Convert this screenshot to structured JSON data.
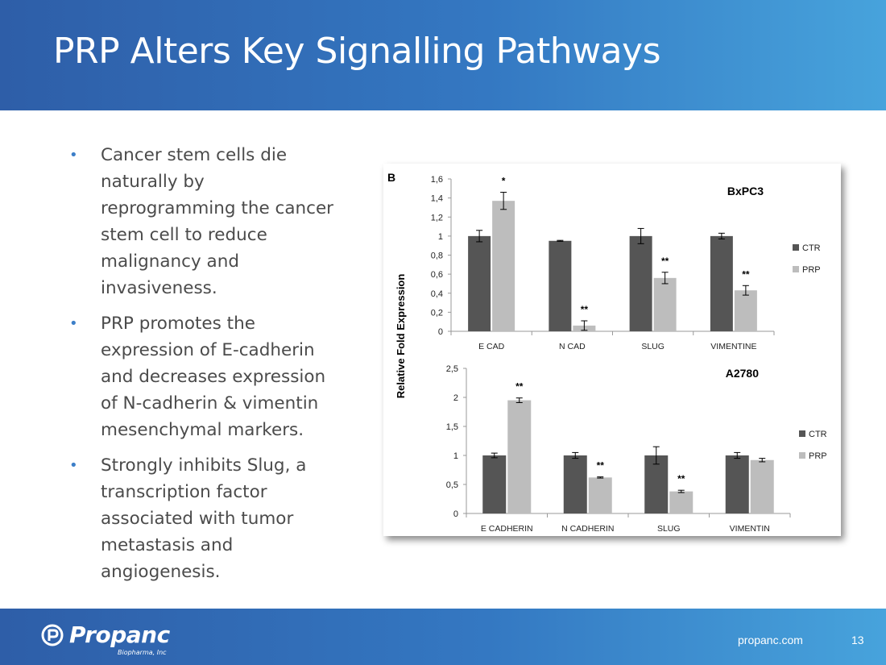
{
  "slide": {
    "title": "PRP Alters Key Signalling Pathways",
    "bullets": [
      "Cancer stem cells die naturally by reprogramming the cancer stem cell to reduce malignancy and invasiveness.",
      "PRP promotes the expression of E-cadherin and decreases expression of N-cadherin & vimentin mesenchymal markers.",
      "Strongly inhibits Slug, a transcription factor associated with tumor metastasis and angiogenesis."
    ],
    "bullet_color": "#3d7fc8",
    "header_color": "#3478c2"
  },
  "figure": {
    "panel_letter": "B",
    "shared_ylabel": "Relative Fold Expression"
  },
  "chart_data": [
    {
      "type": "bar",
      "title": "BxPC3",
      "categories": [
        "E CAD",
        "N CAD",
        "SLUG",
        "VIMENTINE"
      ],
      "series": [
        {
          "name": "CTR",
          "color": "#555555",
          "values": [
            1.0,
            0.95,
            1.0,
            1.0
          ],
          "errors": [
            0.06,
            0.005,
            0.08,
            0.03
          ]
        },
        {
          "name": "PRP",
          "color": "#bdbdbd",
          "values": [
            1.37,
            0.06,
            0.56,
            0.43
          ],
          "errors": [
            0.09,
            0.05,
            0.06,
            0.05
          ]
        }
      ],
      "significance": [
        "*",
        "**",
        "**",
        "**"
      ],
      "ylim": [
        0,
        1.6
      ],
      "yticks": [
        "0",
        "0,2",
        "0,4",
        "0,6",
        "0,8",
        "1",
        "1,2",
        "1,4",
        "1,6"
      ],
      "legend_position": "right",
      "grid": false
    },
    {
      "type": "bar",
      "title": "A2780",
      "categories": [
        "E CADHERIN",
        "N  CADHERIN",
        "SLUG",
        "VIMENTIN"
      ],
      "series": [
        {
          "name": "CTR",
          "color": "#555555",
          "values": [
            1.0,
            1.0,
            1.0,
            1.0
          ],
          "errors": [
            0.04,
            0.05,
            0.15,
            0.05
          ]
        },
        {
          "name": "PRP",
          "color": "#bdbdbd",
          "values": [
            1.95,
            0.62,
            0.38,
            0.92
          ],
          "errors": [
            0.04,
            0.01,
            0.02,
            0.03
          ]
        }
      ],
      "significance": [
        "**",
        "**",
        "**",
        ""
      ],
      "ylim": [
        0,
        2.5
      ],
      "yticks": [
        "0",
        "0,5",
        "1",
        "1,5",
        "2",
        "2,5"
      ],
      "legend_position": "right",
      "grid": false
    }
  ],
  "footer": {
    "logo_name": "Propanc",
    "logo_sub": "Biopharma, Inc",
    "website": "propanc.com",
    "page_number": "13"
  }
}
